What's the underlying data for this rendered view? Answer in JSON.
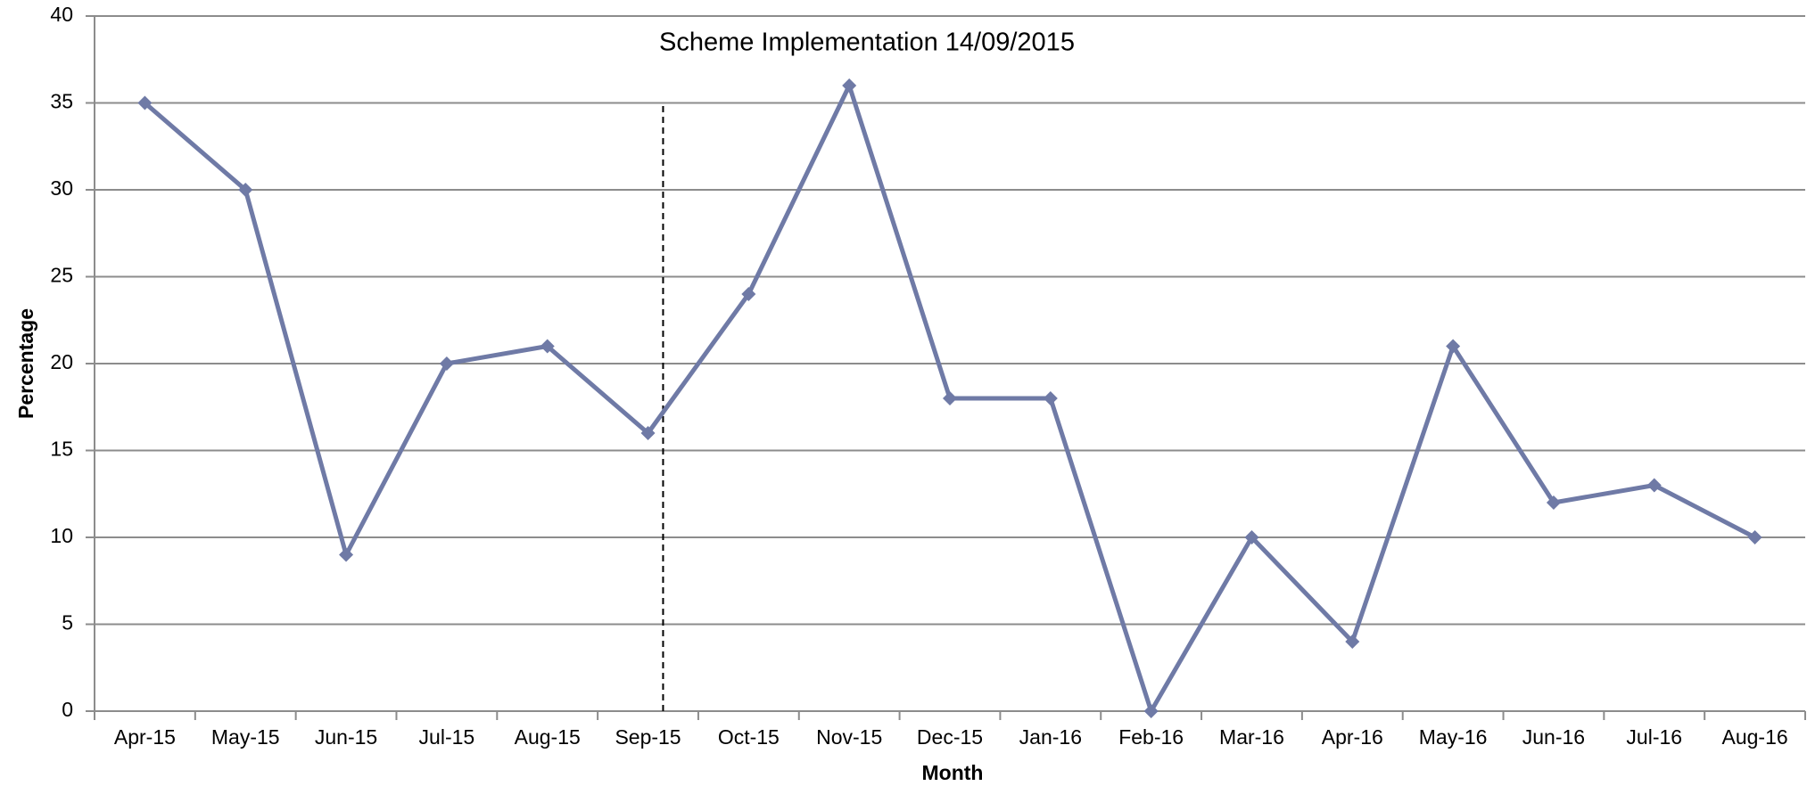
{
  "chart_data": {
    "type": "line",
    "annotation": "Scheme Implementation 14/09/2015",
    "x_label": "Month",
    "y_label": "Percentage",
    "categories": [
      "Apr-15",
      "May-15",
      "Jun-15",
      "Jul-15",
      "Aug-15",
      "Sep-15",
      "Oct-15",
      "Nov-15",
      "Dec-15",
      "Jan-16",
      "Feb-16",
      "Mar-16",
      "Apr-16",
      "May-16",
      "Jun-16",
      "Jul-16",
      "Aug-16"
    ],
    "values": [
      35,
      30,
      9,
      20,
      21,
      16,
      24,
      36,
      18,
      18,
      0,
      10,
      4,
      21,
      12,
      13,
      10
    ],
    "color": "#6f7aa6",
    "ylim": [
      0,
      40
    ],
    "yticks": [
      0,
      5,
      10,
      15,
      20,
      25,
      30,
      35,
      40
    ],
    "grid": true
  }
}
